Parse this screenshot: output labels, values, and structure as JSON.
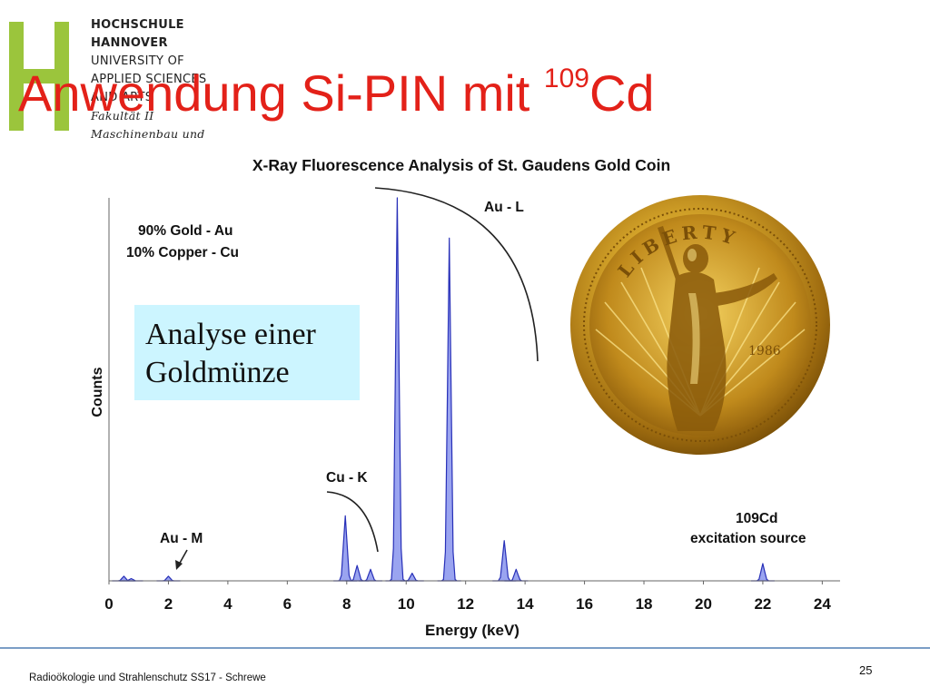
{
  "header": {
    "logo_letter": "H",
    "institution_lines": [
      "HOCHSCHULE",
      "HANNOVER",
      "UNIVERSITY OF",
      "APPLIED SCIENCES",
      "AND ARTS"
    ],
    "faculty_lines": [
      "Fakultät II",
      "Maschinenbau und"
    ],
    "logo_color": "#9bc53c"
  },
  "title": {
    "main": "Anwendung Si-PIN mit ",
    "superscript": "109",
    "suffix": "Cd",
    "color": "#e32119"
  },
  "chart_data": {
    "type": "area",
    "title": "X-Ray Fluorescence Analysis of St. Gaudens Gold Coin",
    "xlabel": "Energy (keV)",
    "ylabel": "Counts",
    "xlim": [
      0,
      24.6
    ],
    "x_ticks": [
      0,
      2,
      4,
      6,
      8,
      10,
      12,
      14,
      16,
      18,
      20,
      22,
      24
    ],
    "grid": false,
    "fill_color": "#9aa4f0",
    "stroke_color": "#2830b8",
    "peaks": [
      {
        "x": 0.5,
        "y": 0.012
      },
      {
        "x": 0.75,
        "y": 0.006
      },
      {
        "x": 2.0,
        "y": 0.012
      },
      {
        "x": 7.95,
        "y": 0.17
      },
      {
        "x": 8.35,
        "y": 0.04
      },
      {
        "x": 8.8,
        "y": 0.03
      },
      {
        "x": 9.7,
        "y": 1.0
      },
      {
        "x": 10.2,
        "y": 0.02
      },
      {
        "x": 11.45,
        "y": 0.895
      },
      {
        "x": 13.3,
        "y": 0.105
      },
      {
        "x": 13.7,
        "y": 0.03
      },
      {
        "x": 22.0,
        "y": 0.045
      }
    ],
    "annotations": {
      "composition": [
        "90% Gold - Au",
        "10% Copper - Cu"
      ],
      "au_l": "Au - L",
      "cu_k": "Cu - K",
      "au_m": "Au - M",
      "source": [
        "109Cd",
        "excitation source"
      ]
    }
  },
  "callout": {
    "line1": "Analyse einer",
    "line2": "Goldmünze",
    "background": "#ccf5ff"
  },
  "coin": {
    "legend": "LIBERTY",
    "year": "1986"
  },
  "footer": {
    "text": "Radioökologie und Strahlenschutz SS17 - Schrewe",
    "page": "25",
    "line_color": "#7b9ec6"
  }
}
